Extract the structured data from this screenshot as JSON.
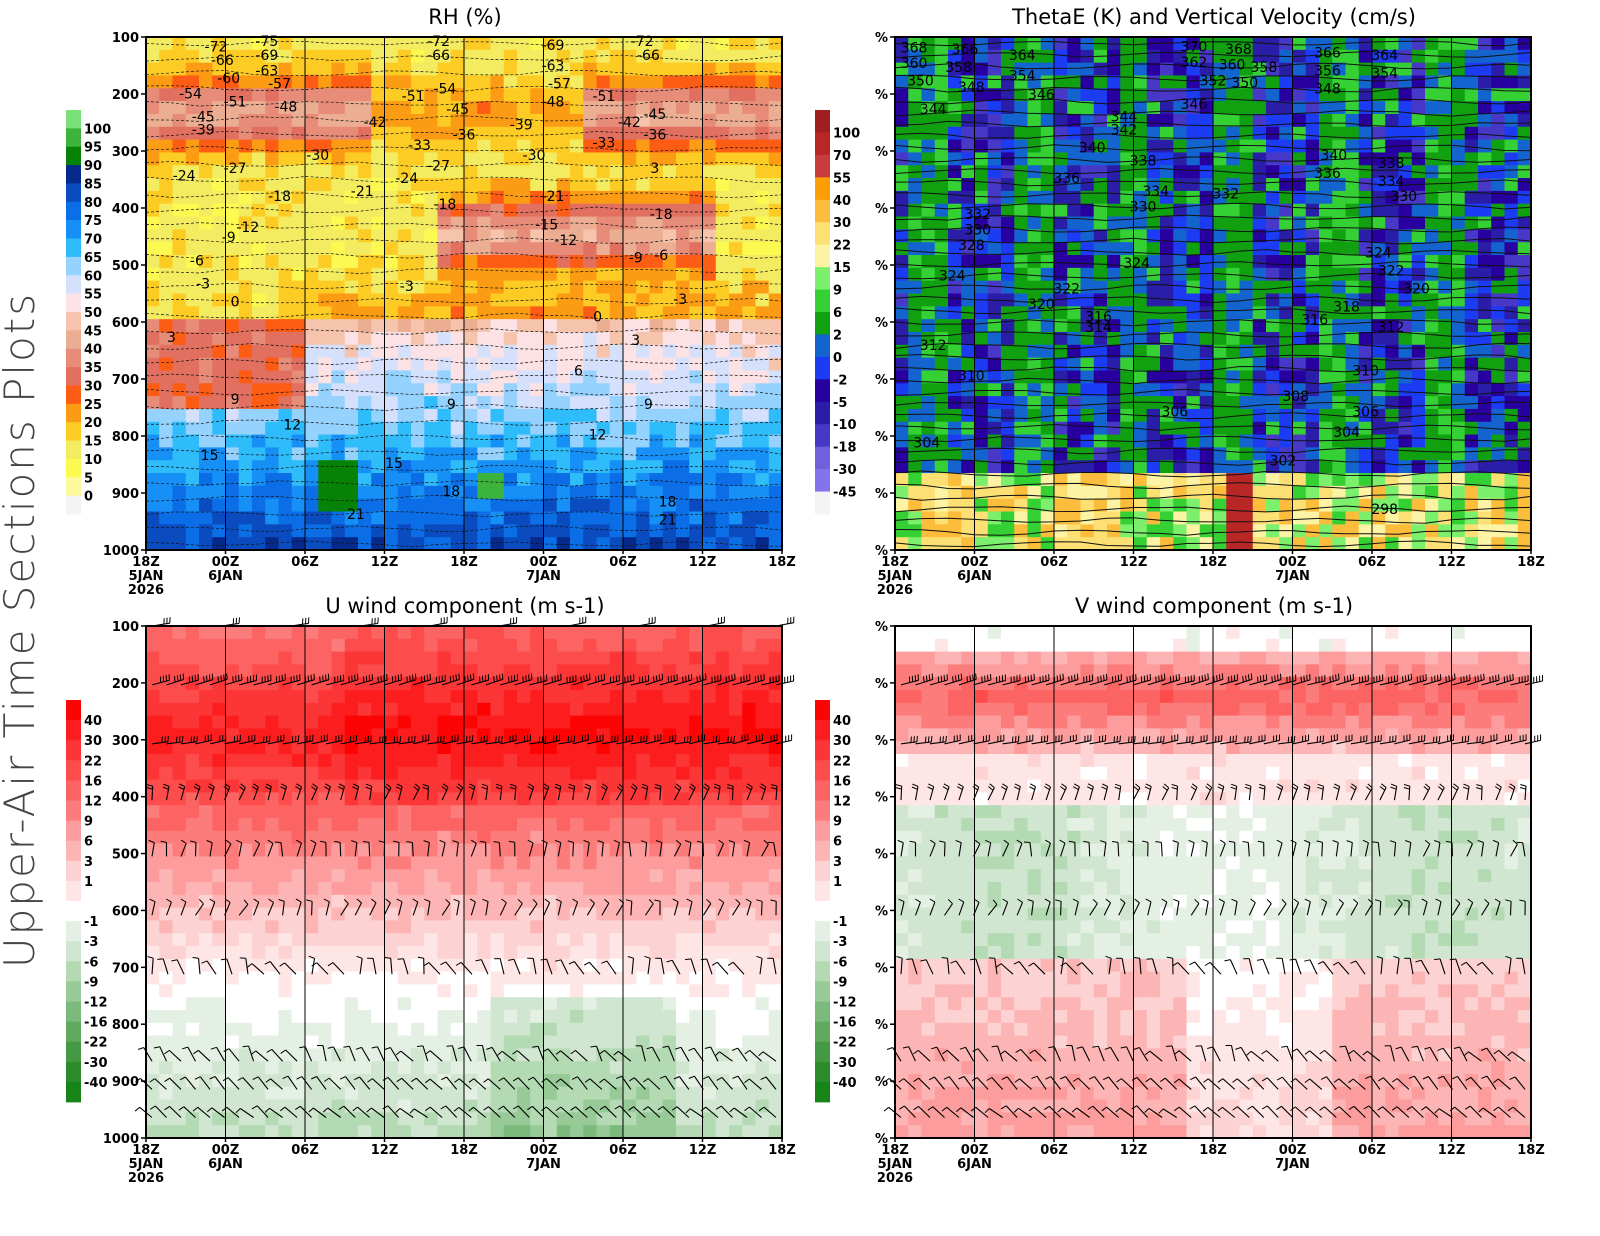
{
  "figure_title": "Upper-Air Time Sections Plots",
  "time_axis": {
    "ticks": [
      "18Z",
      "00Z",
      "06Z",
      "12Z",
      "18Z",
      "00Z",
      "06Z",
      "12Z",
      "18Z"
    ],
    "sublabels": [
      "5JAN",
      "6JAN",
      "",
      "",
      "",
      "7JAN",
      "",
      "",
      ""
    ],
    "year": "2026"
  },
  "pressure_axis": {
    "ticks": [
      "100",
      "200",
      "300",
      "400",
      "500",
      "600",
      "700",
      "800",
      "900",
      "1000"
    ]
  },
  "percent_axis": {
    "ticks": [
      "%",
      "%",
      "%",
      "%",
      "%",
      "%",
      "%",
      "%",
      "%",
      "%"
    ]
  },
  "chart_data": [
    {
      "type": "heatmap",
      "title": "RH (%)",
      "xlabel": "",
      "ylabel": "",
      "y_range": [
        1000,
        100
      ],
      "colorbar": {
        "labels": [
          "100",
          "95",
          "90",
          "85",
          "80",
          "75",
          "70",
          "65",
          "60",
          "55",
          "50",
          "45",
          "40",
          "35",
          "30",
          "25",
          "20",
          "15",
          "10",
          "5",
          "0"
        ],
        "colors": [
          "#7ae07a",
          "#3cb43c",
          "#068206",
          "#062a8c",
          "#0a4cc0",
          "#0c6ee6",
          "#1690f6",
          "#2ebcfa",
          "#96d2fe",
          "#d4e0fc",
          "#fce2e4",
          "#f6c4ac",
          "#ecae92",
          "#e88c7a",
          "#e27060",
          "#fc5c14",
          "#fc9c14",
          "#fccc24",
          "#f4ec60",
          "#fcfa50",
          "#fcfa9c",
          "#f4f4f4"
        ]
      },
      "contour_labels": [
        "-75",
        "-72",
        "-69",
        "-66",
        "-63",
        "-60",
        "-57",
        "-54",
        "-51",
        "-48",
        "-45",
        "-42",
        "-39",
        "-36",
        "-33",
        "-30",
        "-27",
        "-24",
        "-21",
        "-18",
        "-15",
        "-12",
        "-9",
        "-6",
        "-3",
        "0",
        "3",
        "6",
        "9",
        "12",
        "15",
        "18",
        "21"
      ]
    },
    {
      "type": "heatmap",
      "title": "ThetaE (K) and Vertical Velocity (cm/s)",
      "xlabel": "",
      "ylabel": "",
      "colorbar": {
        "labels": [
          "100",
          "70",
          "55",
          "40",
          "30",
          "22",
          "15",
          "9",
          "6",
          "2",
          "0",
          "-2",
          "-5",
          "-10",
          "-18",
          "-30",
          "-45"
        ],
        "colors": [
          "#a01e1e",
          "#b82626",
          "#c83c3c",
          "#fc9e04",
          "#fcbc3c",
          "#fce074",
          "#fcf4a4",
          "#7cf06c",
          "#34d034",
          "#10a010",
          "#1464d0",
          "#1c3cf4",
          "#2800a0",
          "#2a1ea8",
          "#4838c8",
          "#7060dc",
          "#8474ec",
          "#f4f4f4"
        ]
      },
      "contour_labels": [
        "370",
        "368",
        "366",
        "364",
        "362",
        "360",
        "358",
        "356",
        "354",
        "352",
        "350",
        "348",
        "346",
        "344",
        "342",
        "340",
        "338",
        "336",
        "334",
        "332",
        "330",
        "328",
        "324",
        "322",
        "320",
        "318",
        "316",
        "314",
        "312",
        "310",
        "308",
        "306",
        "304",
        "302",
        "298"
      ]
    },
    {
      "type": "heatmap",
      "title": "U wind component (m s-1)",
      "xlabel": "",
      "ylabel": "",
      "y_range": [
        1000,
        100
      ],
      "colorbar": {
        "labels": [
          "40",
          "30",
          "22",
          "16",
          "12",
          "9",
          "6",
          "3",
          "1",
          "-1",
          "-3",
          "-6",
          "-9",
          "-12",
          "-16",
          "-22",
          "-30",
          "-40"
        ],
        "colors": [
          "#fc0404",
          "#fc1e1e",
          "#fc3636",
          "#fc4c4c",
          "#fc6464",
          "#fc7c7c",
          "#fc9c9c",
          "#fcb4b4",
          "#fcd2d2",
          "#fee6e6",
          "#ffffff",
          "#e4f0e4",
          "#d0e6d0",
          "#b4dab4",
          "#98ca98",
          "#7cba7c",
          "#60aa60",
          "#449a44",
          "#2c8c2c",
          "#168416"
        ]
      },
      "wind_barb_levels": [
        "200",
        "300",
        "400",
        "500",
        "600",
        "700",
        "850",
        "900",
        "950"
      ]
    },
    {
      "type": "heatmap",
      "title": "V wind component (m s-1)",
      "xlabel": "",
      "ylabel": "",
      "colorbar": {
        "labels": [
          "40",
          "30",
          "22",
          "16",
          "12",
          "9",
          "6",
          "3",
          "1",
          "-1",
          "-3",
          "-6",
          "-9",
          "-12",
          "-16",
          "-22",
          "-30",
          "-40"
        ],
        "colors": [
          "#fc0404",
          "#fc1e1e",
          "#fc3636",
          "#fc4c4c",
          "#fc6464",
          "#fc7c7c",
          "#fc9c9c",
          "#fcb4b4",
          "#fcd2d2",
          "#fee6e6",
          "#ffffff",
          "#e4f0e4",
          "#d0e6d0",
          "#b4dab4",
          "#98ca98",
          "#7cba7c",
          "#60aa60",
          "#449a44",
          "#2c8c2c",
          "#168416"
        ]
      }
    }
  ]
}
